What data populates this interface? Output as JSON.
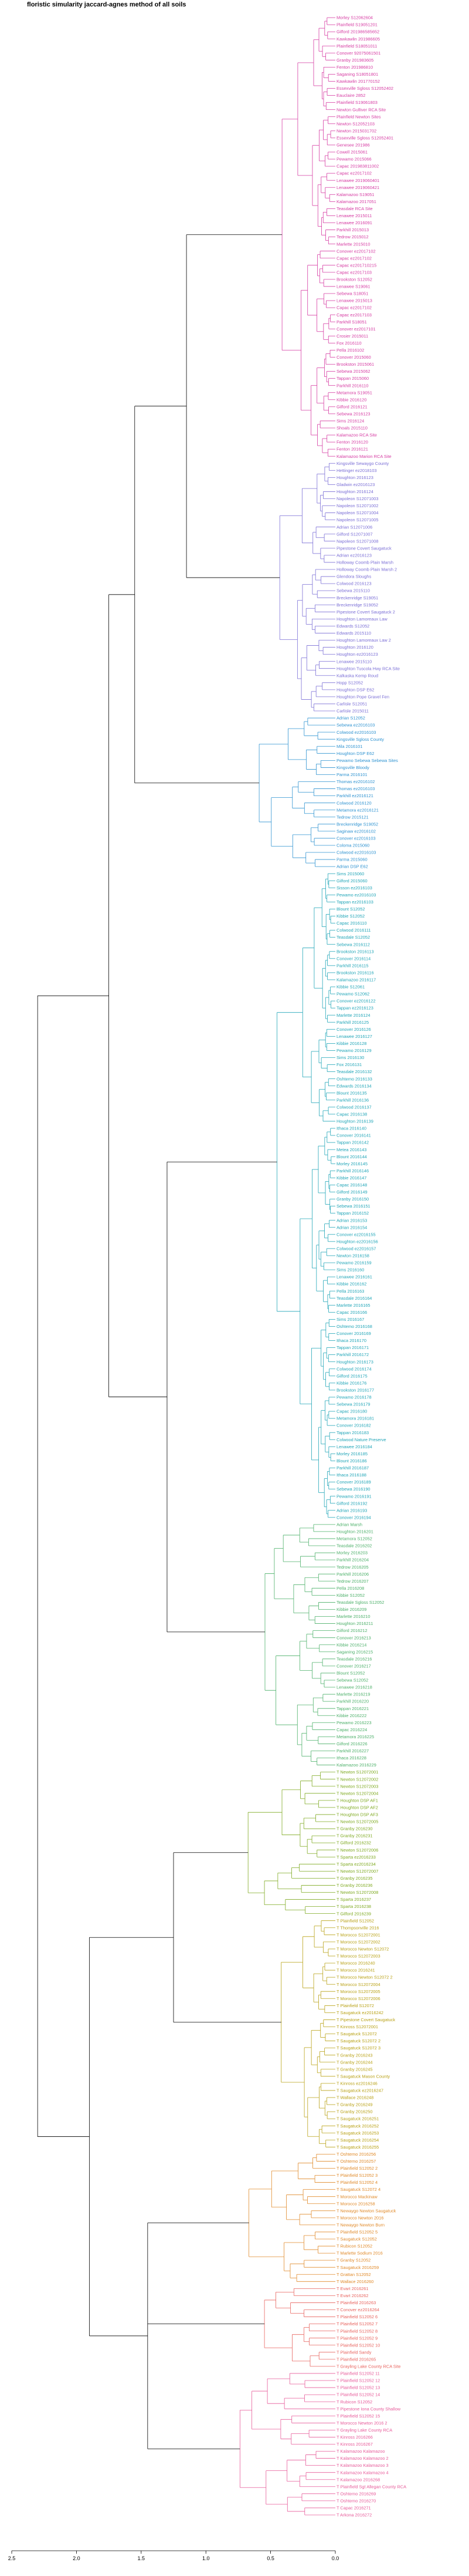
{
  "chart_data": {
    "type": "dendrogram",
    "title": "floristic simularity jaccard-agnes  method of all soils",
    "xlabel": "",
    "ylabel": "",
    "xlim": [
      2.5,
      0.0
    ],
    "x_ticks": [
      "2.5",
      "2.0",
      "1.5",
      "1.0",
      "0.5",
      "0.0"
    ],
    "x_tick_values": [
      2.5,
      2.0,
      1.5,
      1.0,
      0.5,
      0.0
    ],
    "grid": false,
    "legend": "none",
    "cluster_colors": [
      "#d63ca3",
      "#7b6fd6",
      "#2f93d1",
      "#22a6b8",
      "#4db06a",
      "#7faa22",
      "#b9a217",
      "#e08a2a",
      "#e8645f",
      "#e75b9a"
    ],
    "clusters": [
      {
        "color": "#d63ca3",
        "leaves": [
          "Morley S12062604",
          "Plainfield S19051201",
          "Gilford 201986585652",
          "Kawkawlin 201986605",
          "Plainfield S18051011",
          "Conover 92075061501",
          "Granby 201983605",
          "Fenton 201986810",
          "Saganing S18051801",
          "Kawkawlin 201770152",
          "Essexville Sgloss S12052402",
          "Eauclaire 2852",
          "Plainfield S19061803",
          "Newton Gulliver RCA Site",
          "Plainfield Newton Sites",
          "Newton S12052103",
          "Newton 2015031702",
          "Essexville Sgloss S12052401",
          "Genesee 201986",
          "Cowell 2015061",
          "Pewamo 2015066",
          "Capac 201983811002",
          "Capac ez2017102",
          "Lenawee 2019060401",
          "Lenawee 2019060421",
          "Kalamazoo S19051",
          "Kalamazoo 2017051",
          "Teasdale RCA Site",
          "Lenawee 2015011",
          "Lenawee 2016091",
          "Parkhill 2015013",
          "Tedrow 2015012",
          "Marlette 2015010",
          "Conover ez2017102",
          "Capac ez2017102",
          "Capac ez201710215",
          "Capac ez2017103",
          "Brookston S12052",
          "Lenawee S19061",
          "Sebewa S18051",
          "Lenawee 2015013",
          "Capac ez2017102",
          "Capac ez2017103",
          "Parkhill S18051",
          "Conover ez2017101",
          "Crosier 2015011",
          "Fox 2016110",
          "Pella 2016102",
          "Conover 2015060",
          "Brookston 2015061",
          "Sebewa 2015062",
          "Tappan 2015060",
          "Parkhill 2016110",
          "Metamora S19051",
          "Kibbie 2016120",
          "Gilford 2016121",
          "Sebewa 2016123",
          "Sims 2016124",
          "Shoals 2015110",
          "Kalamazoo RCA Site",
          "Fenton 2016120",
          "Fenton 2016121",
          "Kalamazoo Marion RCA Site"
        ]
      },
      {
        "color": "#7b6fd6",
        "leaves": [
          "Kingsville Sewaygo County",
          "Hettinger ez2018103",
          "Houghton 2016123",
          "Gladwin ez2016123",
          "Houghton 2016124",
          "Napoleon S12071003",
          "Napoleon S12071002",
          "Napoleon S12071004",
          "Napoleon S12071005",
          "Adrian S12071006",
          "Gilford S12071007",
          "Napoleon S12071008",
          "Pipestone Covert Saugatuck",
          "Adrian ez2016123",
          "Holloway Coomb Plain Marsh",
          "Holloway Coomb Plain Marsh 2",
          "Glendora Sloughs",
          "Colwood 2016123",
          "Sebewa 2015110",
          "Breckenridge S19051",
          "Breckenridge S19052",
          "Pipestone Covert Saugatuck 2",
          "Houghton Lamoreaux Law",
          "Edwards S12052",
          "Edwards 2015110",
          "Houghton Lamoreaux Law 2",
          "Houghton 2016120",
          "Houghton ez2016123",
          "Lenawee 2015110",
          "Houghton Tuscola Hwy RCA Site",
          "Kalkaska Kemp Roud",
          "Hopp S12052",
          "Houghton DSP E62",
          "Houghton Pope Gravel Fen",
          "Carlisle S12051",
          "Carlisle 2015011"
        ]
      },
      {
        "color": "#2f93d1",
        "leaves": [
          "Adrian S12052",
          "Sebewa ez2016103",
          "Colwood ez2016103",
          "Kingsville Sgloss County",
          "Mila 2016101",
          "Houghton DSP E62",
          "Pewamo Sebewa Sebewa Sites",
          "Kingsville Bloody",
          "Parma 2016101",
          "Thomas ez2016102",
          "Thomas ez2016103",
          "Parkhill ez2016121",
          "Colwood 2016120",
          "Metamora ez2016121",
          "Tedrow 2015121",
          "Breckenridge S19052",
          "Saginaw ez2016102",
          "Conover ez2016103",
          "Coloma 2015060",
          "Colwood ez2016103",
          "Parma 2015060",
          "Adrian DSP E62"
        ]
      },
      {
        "color": "#22a6b8",
        "leaves": [
          "Sims 2015060",
          "Gilford 2015060",
          "Sisson ez2016103",
          "Pewamo ez2016103",
          "Tappan ez2016103",
          "Blount S12052",
          "Kibbie S12052",
          "Capac 2016110",
          "Colwood 2016111",
          "Teasdale S12052",
          "Sebewa 2016112",
          "Brookston 2016113",
          "Conover 2016114",
          "Parkhill 2016115",
          "Brookston 2016116",
          "Kalamazoo 2016117",
          "Kibbie S12061",
          "Pewamo S12062",
          "Conover ez2016122",
          "Tappan ez2016123",
          "Marlette 2016124",
          "Parkhill 2016125",
          "Conover 2016126",
          "Lenawee 2016127",
          "Kibbie 2016128",
          "Pewamo 2016129",
          "Sims 2016130",
          "Fox 2016131",
          "Teasdale 2016132",
          "Oshtemo 2016133",
          "Edwards 2016134",
          "Blount 2016135",
          "Parkhill 2016136",
          "Colwood 2016137",
          "Capac 2016138",
          "Houghton 2016139",
          "Ithaca 2016140",
          "Conover 2016141",
          "Tappan 2016142",
          "Metea 2016143",
          "Blount 2016144",
          "Morley 2016145",
          "Parkhill 2016146",
          "Kibbie 2016147",
          "Capac 2016148",
          "Gilford 2016149",
          "Granby 2016150",
          "Sebewa 2016151",
          "Tappan 2016152",
          "Adrian 2016153",
          "Adrian 2016154",
          "Conover ez2016155",
          "Houghton ez2016156",
          "Colwood ez2016157",
          "Newton 2016158",
          "Pewamo 2016159",
          "Sims 2016160",
          "Lenawee 2016161",
          "Kibbie 2016162",
          "Pella 2016163",
          "Teasdale 2016164",
          "Marlette 2016165",
          "Capac 2016166",
          "Sims 2016167",
          "Oshtemo 2016168",
          "Conover 2016169",
          "Ithaca 2016170",
          "Tappan 2016171",
          "Parkhill 2016172",
          "Houghton 2016173",
          "Colwood 2016174",
          "Gilford 2016175",
          "Kibbie 2016176",
          "Brookston 2016177",
          "Pewamo 2016178",
          "Sebewa 2016179",
          "Capac 2016180",
          "Metamora 2016181",
          "Conover 2016182",
          "Tappan 2016183",
          "Colwood Nature Preserve",
          "Lenawee 2016184",
          "Morley 2016185",
          "Blount 2016186",
          "Parkhill 2016187",
          "Ithaca 2016188",
          "Conover 2016189",
          "Sebewa 2016190",
          "Pewamo 2016191",
          "Gilford 2016192",
          "Adrian 2016193",
          "Conover 2016194"
        ]
      },
      {
        "color": "#4db06a",
        "leaves": [
          "Adrian Marsh",
          "Houghton 2016201",
          "Metamora S12052",
          "Teasdale 2016202",
          "Morley 2016203",
          "Parkhill 2016204",
          "Tedrow 2016205",
          "Parkhill 2016206",
          "Tedrow 2016207",
          "Pella 2016208",
          "Kibbie S12052",
          "Teasdale Sgloss S12052",
          "Kibbie 2016209",
          "Marlette 2016210",
          "Houghton 2016211",
          "Gilford 2016212",
          "Conover 2016213",
          "Kibbie 2016214",
          "Saganing 2016215",
          "Teasdale 2016216",
          "Conover 2016217",
          "Blount S12052",
          "Sebewa S12052",
          "Lenawee 2016218",
          "Marlette 2016219",
          "Parkhill 2016220",
          "Tappan 2016221",
          "Kibbie 2016222",
          "Pewamo 2016223",
          "Capac 2016224",
          "Metamora 2016225",
          "Gilford 2016226",
          "Parkhill 2016227",
          "Ithaca 2016228",
          "Kalamazoo 2016229"
        ]
      },
      {
        "color": "#7faa22",
        "leaves": [
          "T Newton S12072001",
          "T Newton S12072002",
          "T Newton S12072003",
          "T Newton S12072004",
          "T Houghton DSP AF1",
          "T Houghton DSP AF2",
          "T Houghton DSP AF3",
          "T Newton S12072005",
          "T Granby 2016230",
          "T Granby 2016231",
          "T Gilford 2016232",
          "T Newton S12072006",
          "T Sparta ez2016233",
          "T Sparta ez2016234",
          "T Newton S12072007",
          "T Granby 2016235",
          "T Granby 2016236",
          "T Newton S12072008",
          "T Sparta 2016237",
          "T Sparta 2016238",
          "T Gilford 2016239"
        ]
      },
      {
        "color": "#b9a217",
        "leaves": [
          "T Plainfield S12052",
          "T Thompsonville 2016",
          "T Morocco S12072001",
          "T Morocco S12072002",
          "T Morocco Newton S12072",
          "T Morocco S12072003",
          "T Morocco 2016240",
          "T Morocco 2016241",
          "T Morocco Newton S12072 2",
          "T Morocco S12072004",
          "T Morocco S12072005",
          "T Morocco S12072006",
          "T Plainfield S12072",
          "T Saugatuck ez2016242",
          "T Pipestone Covert Saugatuck",
          "T Kinross S12072001",
          "T Saugatuck S12072",
          "T Saugatuck S12072 2",
          "T Saugatuck S12072 3",
          "T Granby 2016243",
          "T Granby 2016244",
          "T Granby 2016245",
          "T Saugatuck Mason County",
          "T Kinross ez2016246",
          "T Saugatuck ez2016247",
          "T Wallace 2016248",
          "T Granby 2016249",
          "T Granby 2016250",
          "T Saugatuck 2016251",
          "T Saugatuck 2016252",
          "T Saugatuck 2016253",
          "T Saugatuck 2016254",
          "T Saugatuck 2016255"
        ]
      },
      {
        "color": "#e08a2a",
        "leaves": [
          "T Oshtemo 2016256",
          "T Oshtemo 2016257",
          "T Plainfield S12052 2",
          "T Plainfield S12052 3",
          "T Plainfield S12052 4",
          "T Saugatuck S12072 4",
          "T Morocco Mackinaw",
          "T Morocco 2016258",
          "T Newaygo Newton Saugatuck",
          "T Morocco Newton 2016",
          "T Newaygo Newton Burn",
          "T Plainfield S12052 5",
          "T Saugatuck S12052",
          "T Rubicon S12052",
          "T Marlette Sodium 2016",
          "T Granby S12052",
          "T Saugatuck 2016259",
          "T Grattan S12052",
          "T Wallace 2016260"
        ]
      },
      {
        "color": "#e8645f",
        "leaves": [
          "T Evart 2016261",
          "T Evart 2016262",
          "T Plainfield 2016263",
          "T Conover ez2016264",
          "T Plainfield S12052 6",
          "T Plainfield S12052 7",
          "T Plainfield S12052 8",
          "T Plainfield S12052 9",
          "T Plainfield S12052 10",
          "T Plainfield Sandy",
          "T Plainfield 2016265",
          "T Grayling Lake County RCA Site"
        ]
      },
      {
        "color": "#e75b9a",
        "leaves": [
          "T Plainfield S12052 11",
          "T Plainfield S12052 12",
          "T Plainfield S12052 13",
          "T Plainfield S12052 14",
          "T Rubicon S12052",
          "T Pipestone Iona County Shallow",
          "T Plainfield S12052 15",
          "T Morocco Newton 2016 2",
          "T Grayling Lake County RCA",
          "T Kinross 2016266",
          "T Kinross 2016267",
          "T Kalamazoo Kalamazoo",
          "T Kalamazoo Kalamazoo 2",
          "T Kalamazoo Kalamazoo 3",
          "T Kalamazoo Kalamazoo 4",
          "T Kalamazoo 2016268",
          "T Plainfield Sgt Allegan County RCA",
          "T Oshtemo 2016269",
          "T Oshtemo 2016270",
          "T Capac 2016271",
          "T Arkona 2016272"
        ]
      }
    ]
  }
}
